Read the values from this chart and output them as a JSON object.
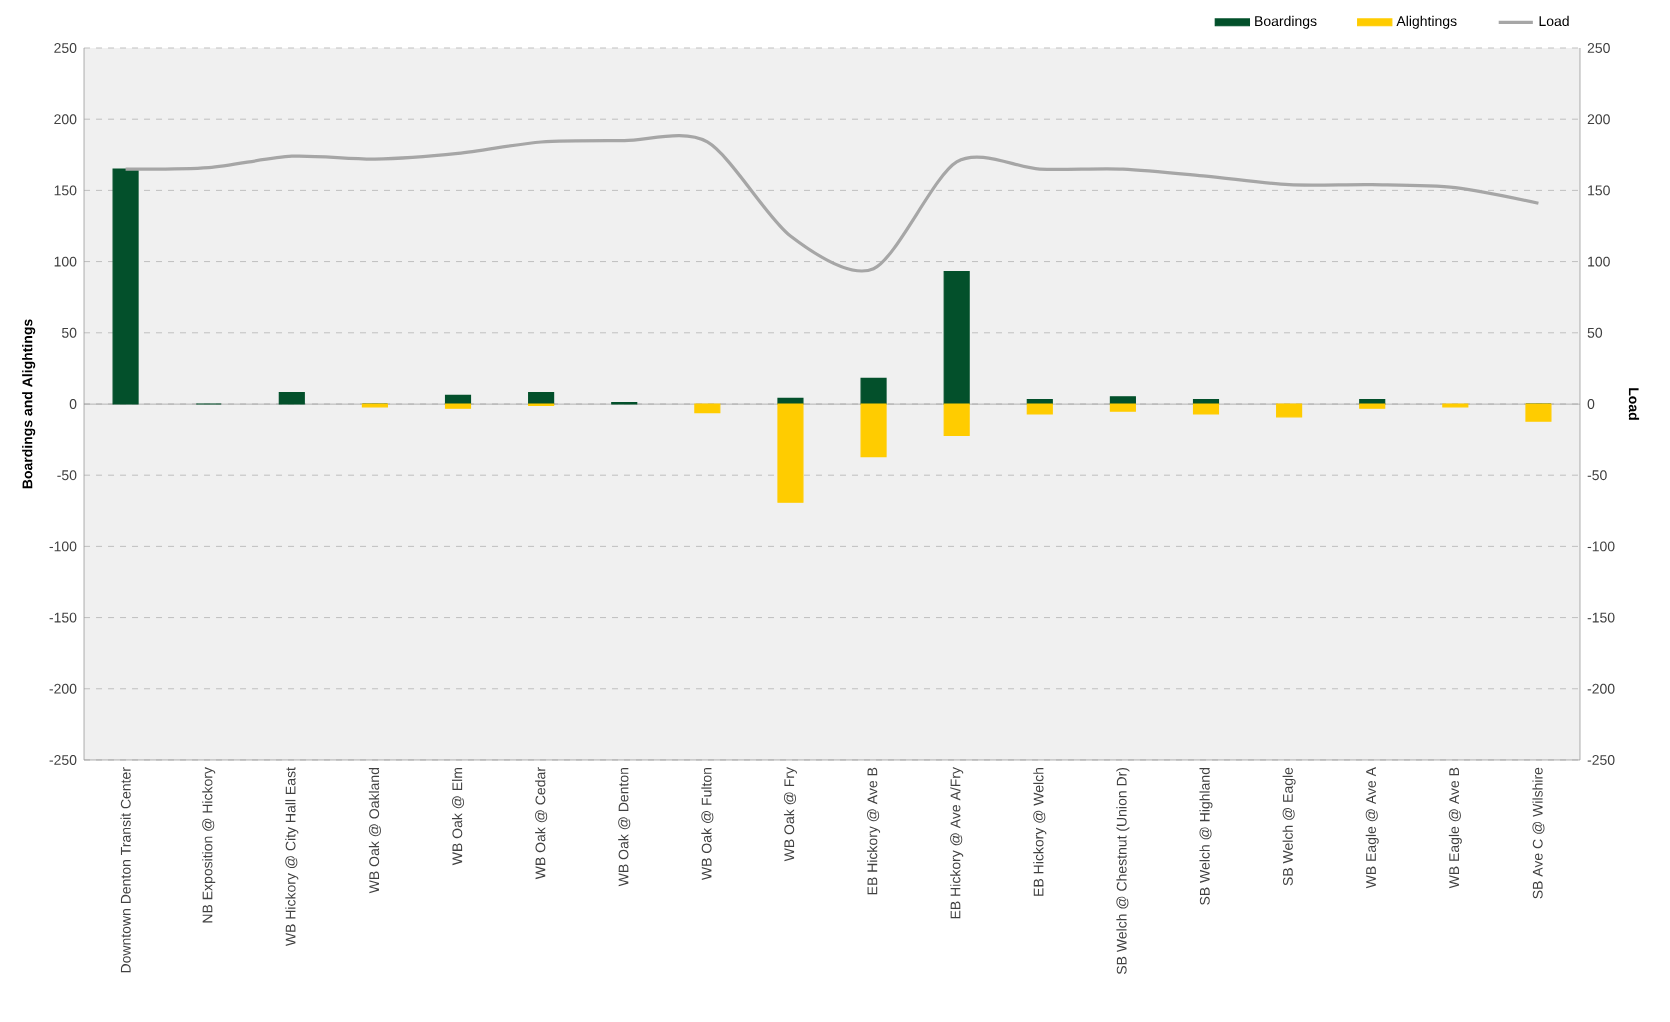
{
  "chart_data": {
    "type": "bar",
    "categories": [
      "Downtown Denton Transit Center",
      "NB Exposition @ Hickory",
      "WB Hickory @ City Hall East",
      "WB Oak @ Oakland",
      "WB Oak @ Elm",
      "WB Oak @ Cedar",
      "WB Oak @ Denton",
      "WB Oak @ Fulton",
      "WB Oak @ Fry",
      "EB Hickory @ Ave B",
      "EB Hickory @ Ave A/Fry",
      "EB Hickory @ Welch",
      "SB Welch @ Chestnut (Union Dr)",
      "SB Welch @ Highland",
      "SB Welch @ Eagle",
      "WB Eagle @ Ave A",
      "WB Eagle @ Ave B",
      "SB Ave C @ Wilshire"
    ],
    "series": [
      {
        "name": "Boardings",
        "color": "#03502b",
        "values": [
          165,
          0,
          8,
          0,
          6,
          8,
          1,
          null,
          4,
          18,
          93,
          3,
          5,
          3,
          null,
          3,
          null,
          0
        ]
      },
      {
        "name": "Alightings",
        "color": "#ffcc00",
        "values": [
          0,
          0,
          0,
          -2,
          -3,
          -1,
          0,
          -6,
          -69,
          -37,
          -22,
          -7,
          -5,
          -7,
          -9,
          -3,
          -2,
          -12
        ]
      },
      {
        "name": "Load",
        "type": "line",
        "axis": "y2",
        "color": "#a6a6a6",
        "values": [
          165,
          166,
          174,
          172,
          176,
          184,
          185,
          184,
          118,
          95,
          170,
          165,
          165,
          160,
          154,
          154,
          152,
          141
        ]
      }
    ],
    "stacked": true,
    "ylabel": "Boardings and Alightings",
    "y2label": "Load",
    "ylim": [
      -250,
      250
    ],
    "yticks": [
      -250,
      -200,
      -150,
      -100,
      -50,
      0,
      50,
      100,
      150,
      200,
      250
    ],
    "y2lim": [
      -250,
      250
    ],
    "y2ticks": [
      -250,
      -200,
      -150,
      -100,
      -50,
      0,
      50,
      100,
      150,
      200,
      250
    ],
    "grid": "y",
    "legend": "top right"
  }
}
